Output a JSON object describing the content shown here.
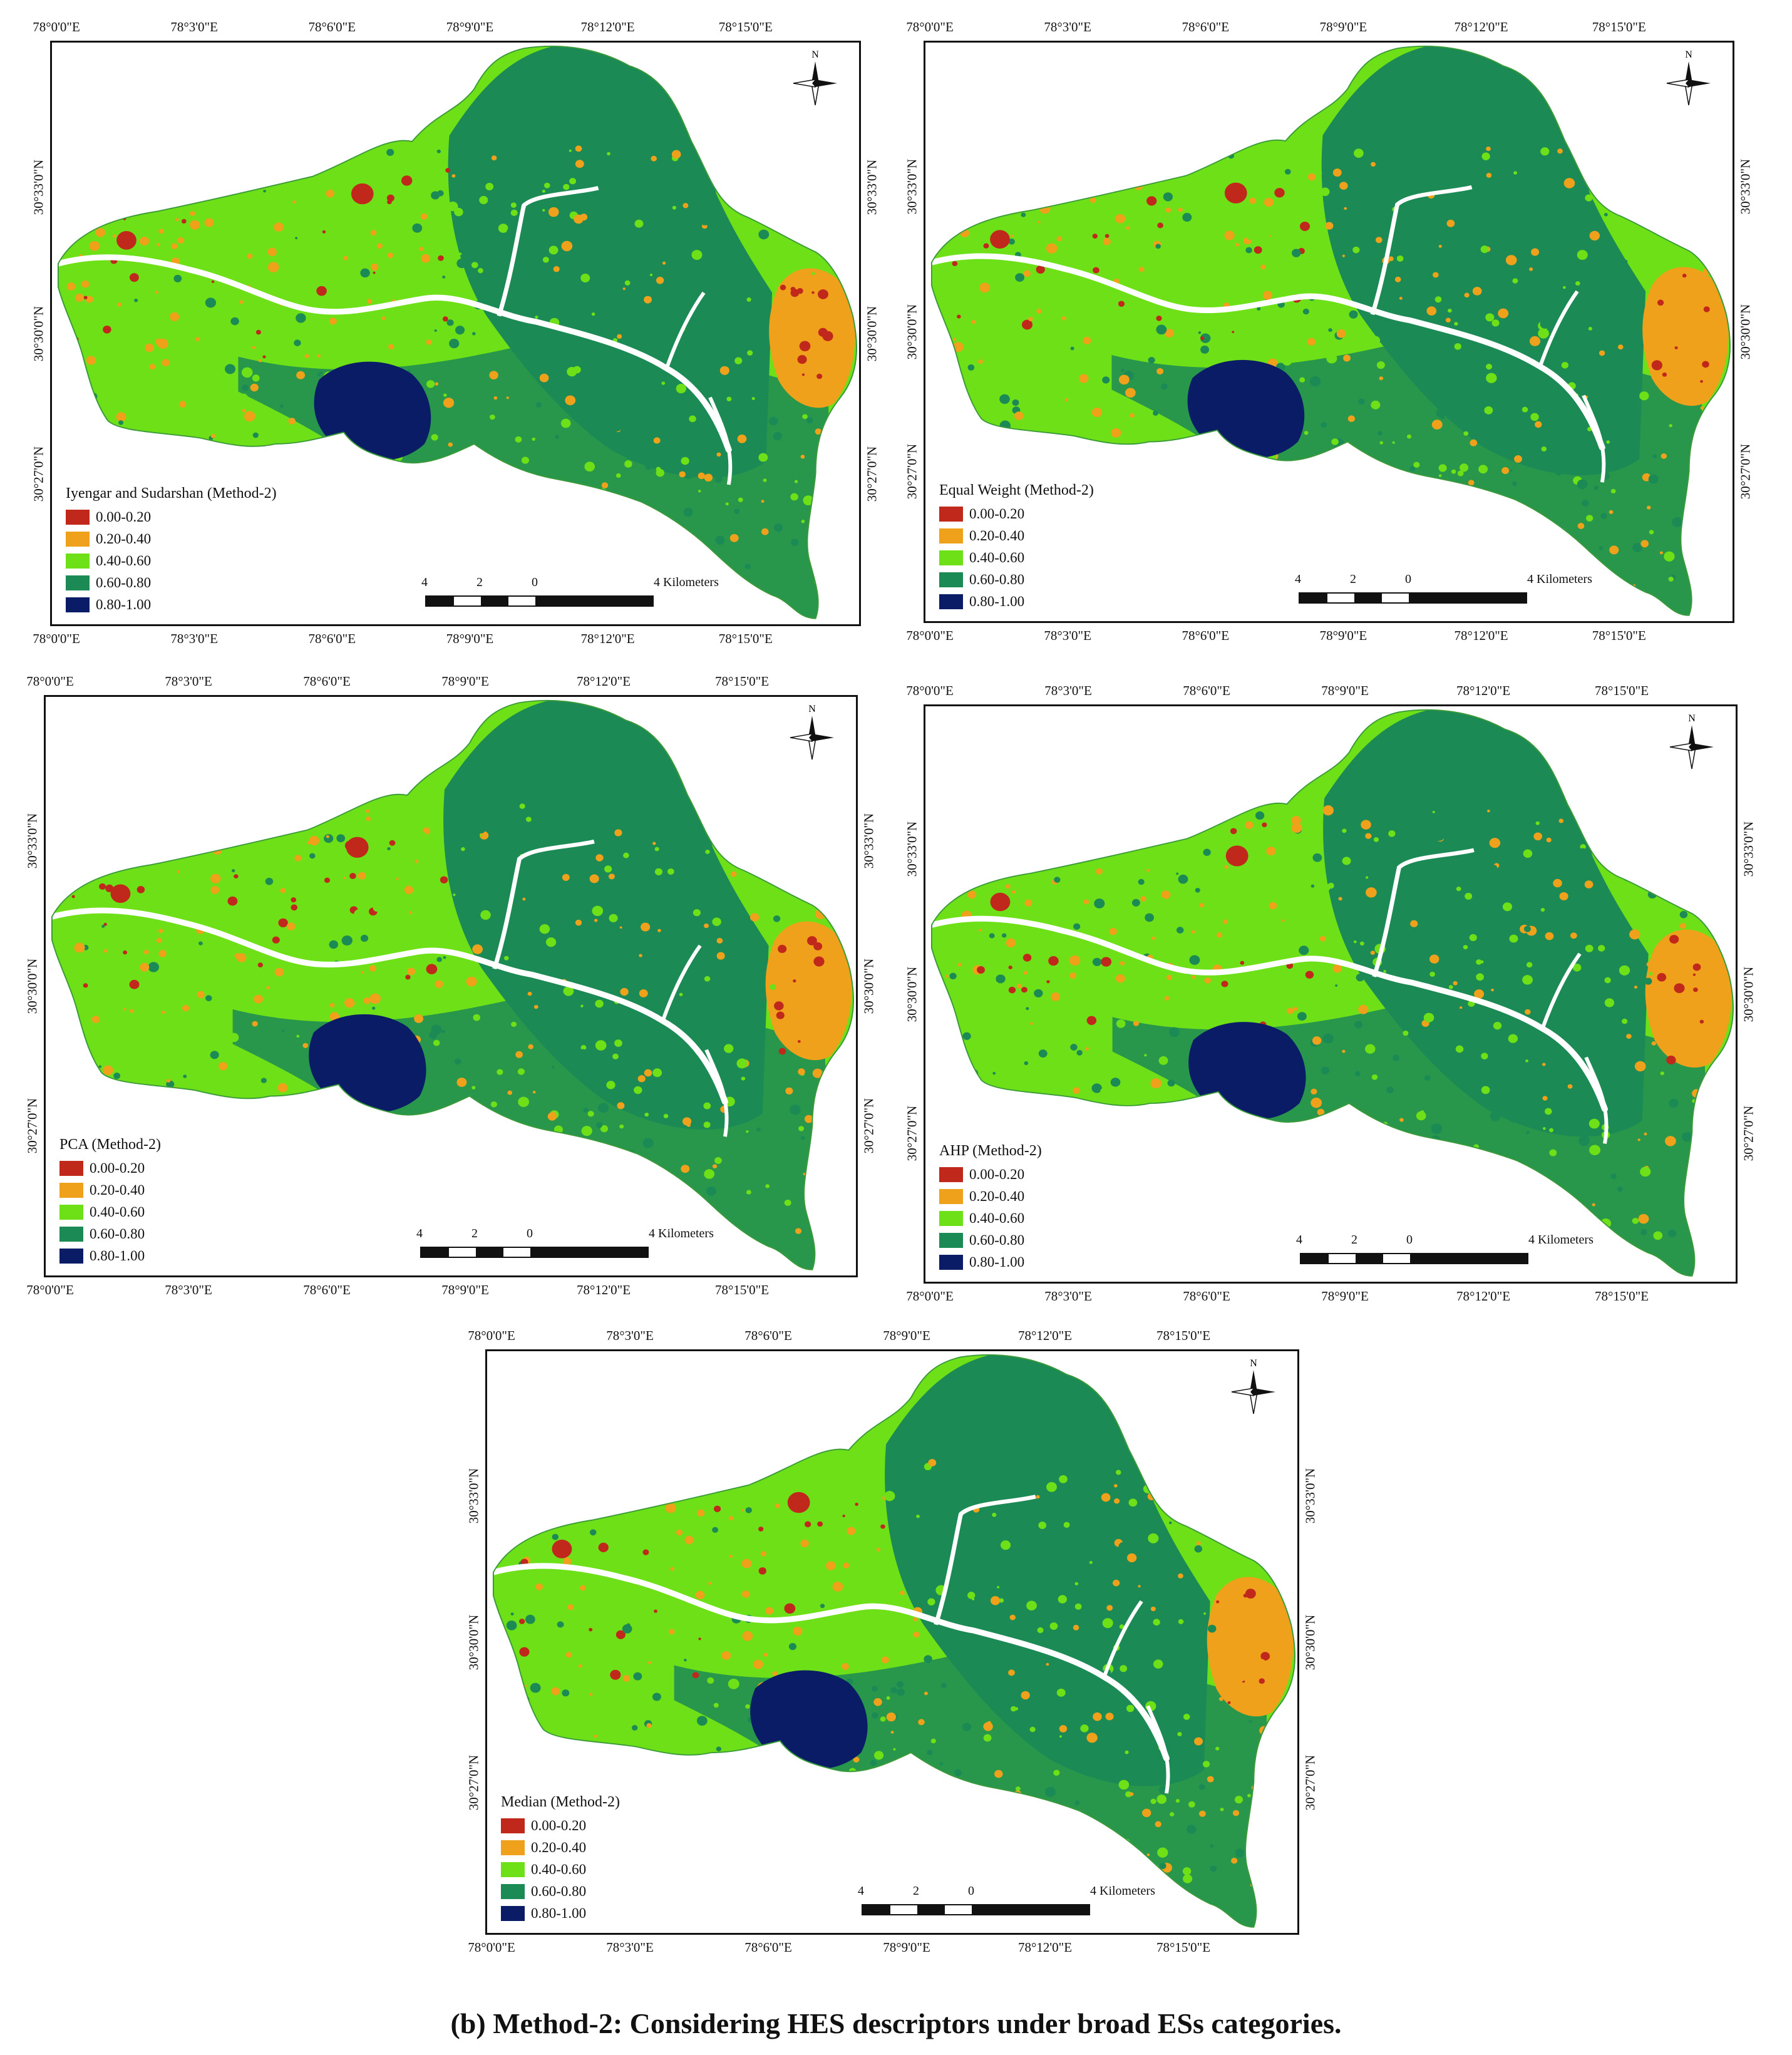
{
  "figure": {
    "caption": "(b) Method-2: Considering HES descriptors under broad ESs categories.",
    "longitude_labels": [
      "78°0'0\"E",
      "78°3'0\"E",
      "78°6'0\"E",
      "78°9'0\"E",
      "78°12'0\"E",
      "78°15'0\"E"
    ],
    "latitude_labels": [
      "30°33'0\"N",
      "30°30'0\"N",
      "30°27'0\"N"
    ],
    "legend_classes": [
      "0.00-0.20",
      "0.20-0.40",
      "0.40-0.60",
      "0.60-0.80",
      "0.80-1.00"
    ],
    "class_colors": [
      "#c0281c",
      "#f0a11c",
      "#6ee018",
      "#1c8a55",
      "#0b1c66"
    ],
    "scale_labels": [
      "4",
      "2",
      "0",
      "4 Kilometers"
    ],
    "north_label": "N",
    "panels": [
      {
        "id": "iyengar",
        "legend_title": "Iyengar and Sudarshan (Method-2)"
      },
      {
        "id": "equal",
        "legend_title": "Equal Weight (Method-2)"
      },
      {
        "id": "pca",
        "legend_title": "PCA (Method-2)"
      },
      {
        "id": "ahp",
        "legend_title": "AHP (Method-2)"
      },
      {
        "id": "median",
        "legend_title": "Median (Method-2)"
      }
    ]
  }
}
